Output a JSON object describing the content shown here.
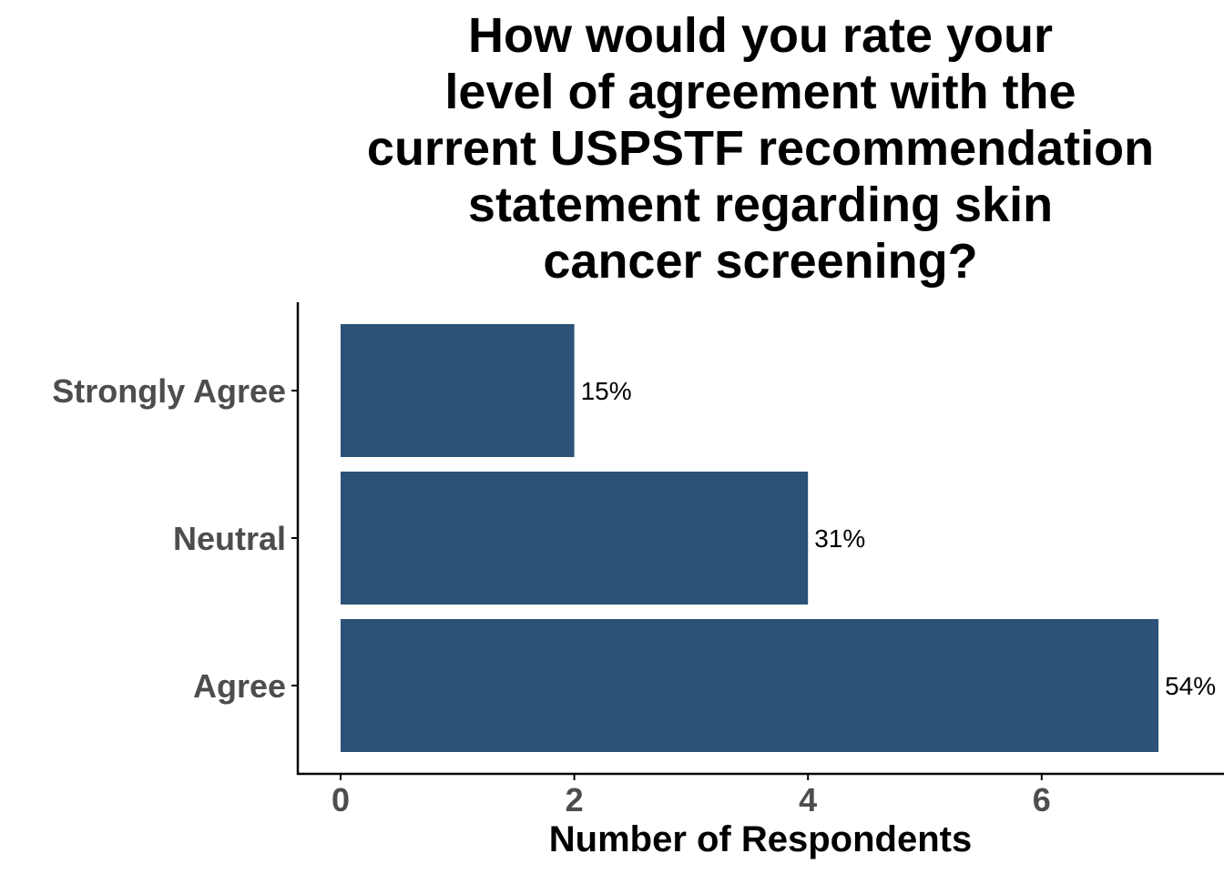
{
  "chart_data": {
    "type": "bar",
    "orientation": "horizontal",
    "title_lines": [
      "How would you rate your",
      "level of agreement with the",
      "current USPSTF recommendation",
      "statement regarding skin",
      "cancer screening?"
    ],
    "categories": [
      "Strongly Agree",
      "Neutral",
      "Agree"
    ],
    "values": [
      2,
      4,
      7
    ],
    "data_labels": [
      "15%",
      "31%",
      "54%"
    ],
    "xlabel": "Number of Respondents",
    "ylabel": "",
    "xlim": [
      0,
      7.35
    ],
    "xticks": [
      0,
      2,
      4,
      6
    ],
    "xtick_labels": [
      "0",
      "2",
      "4",
      "6"
    ],
    "grid": false,
    "bar_color": "#2c5277",
    "axis_color": "#000000",
    "label_color": "#4d4d4d"
  }
}
